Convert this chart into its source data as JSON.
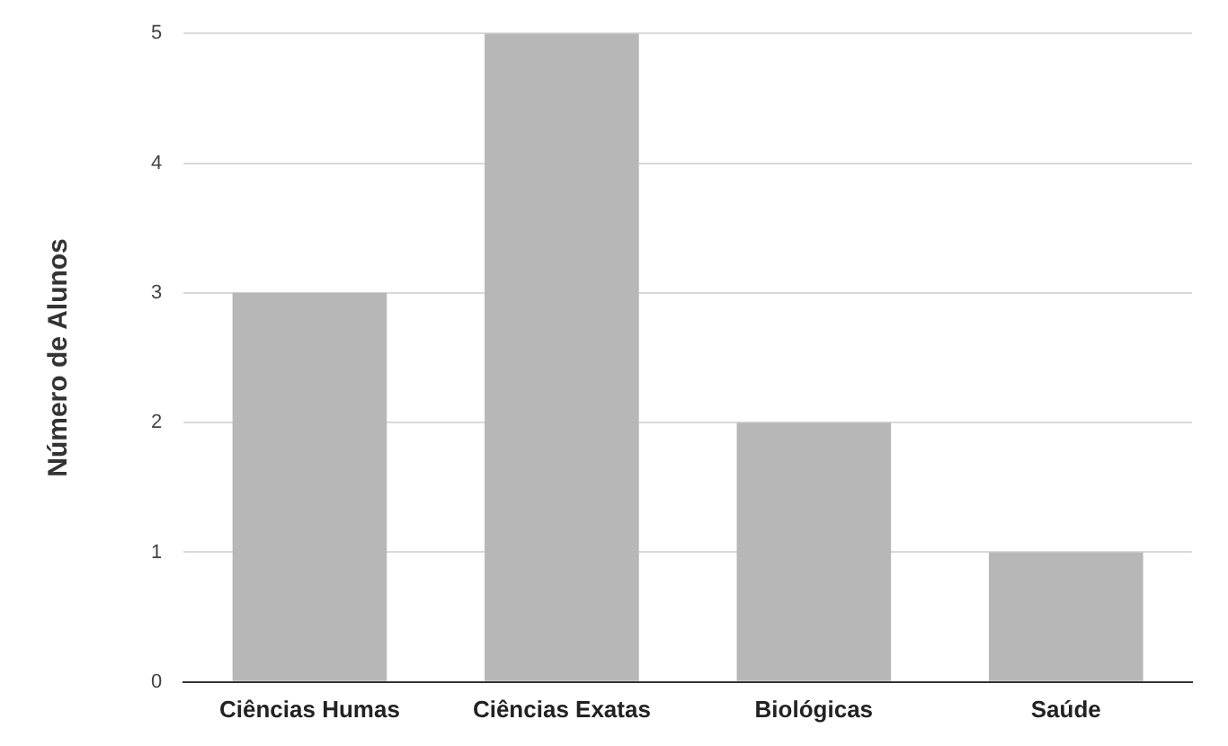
{
  "chart_data": {
    "type": "bar",
    "ylabel": "Número de Alunos",
    "categories": [
      "Ciências Humas",
      "Ciências Exatas",
      "Biológicas",
      "Saúde"
    ],
    "values": [
      3,
      5,
      2,
      1
    ],
    "color": "#b7b7b7",
    "ylim": [
      0,
      5
    ],
    "yticks": [
      0,
      1,
      2,
      3,
      4,
      5
    ],
    "grid": "y",
    "legend": false
  }
}
